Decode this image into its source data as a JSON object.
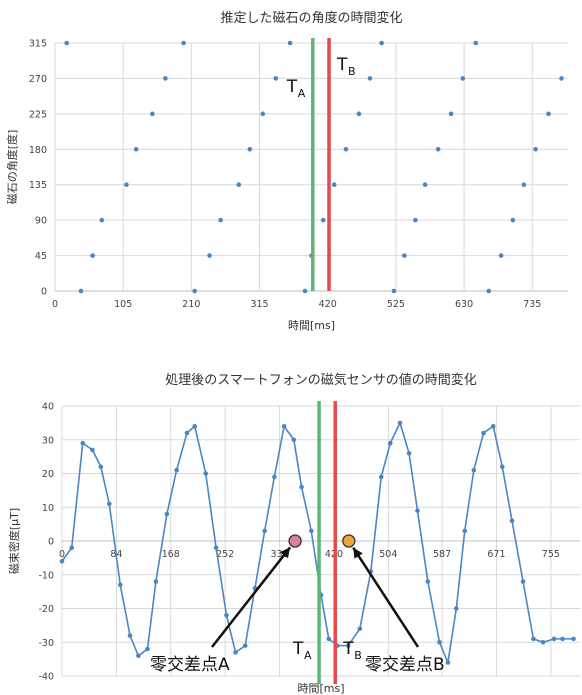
{
  "chart_data": [
    {
      "type": "scatter",
      "title": "推定した磁石の角度の時間変化",
      "xlabel": "時間[ms]",
      "ylabel": "磁石の角度[度]",
      "xlim": [
        0,
        790
      ],
      "ylim": [
        0,
        315
      ],
      "xticks": [
        0,
        105,
        210,
        315,
        420,
        525,
        630,
        735
      ],
      "yticks": [
        0,
        45,
        90,
        135,
        180,
        225,
        270,
        315
      ],
      "grid": true,
      "color": "#4a86c5",
      "series": [
        {
          "x": [
            18,
            40,
            58,
            72,
            110,
            125,
            150,
            170,
            198,
            215,
            238,
            255,
            283,
            300,
            320,
            340,
            362,
            385,
            395,
            413,
            430,
            448,
            468,
            485,
            503,
            522,
            538,
            555,
            570,
            590,
            610,
            628,
            648,
            668,
            687,
            705,
            722,
            740,
            760,
            780
          ],
          "y": [
            315,
            0,
            45,
            90,
            135,
            180,
            225,
            270,
            315,
            0,
            45,
            90,
            135,
            180,
            225,
            270,
            315,
            0,
            45,
            90,
            135,
            180,
            225,
            270,
            315,
            0,
            45,
            90,
            135,
            180,
            225,
            270,
            315,
            0,
            45,
            90,
            135,
            180,
            225,
            270
          ]
        }
      ],
      "markers": [
        {
          "name": "T",
          "sub": "A",
          "x": 397,
          "color": "#5fb575"
        },
        {
          "name": "T",
          "sub": "B",
          "x": 422,
          "color": "#e8484d"
        }
      ]
    },
    {
      "type": "line",
      "title": "処理後のスマートフォンの磁気センサの値の時間変化",
      "xlabel": "時間[ms]",
      "ylabel": "磁束密度[μT]",
      "xlim": [
        0,
        800
      ],
      "ylim": [
        -40,
        40
      ],
      "xticks": [
        0,
        84,
        168,
        252,
        336,
        420,
        504,
        587,
        671,
        755
      ],
      "xtick_labels": [
        "0",
        "84",
        "168",
        "252",
        "336",
        "420",
        "504",
        "587",
        "671",
        "755"
      ],
      "yticks": [
        -40,
        -30,
        -20,
        -10,
        0,
        10,
        20,
        30,
        40
      ],
      "grid": true,
      "color": "#4a86c5",
      "series": [
        {
          "x": [
            0,
            15,
            32,
            47,
            60,
            73,
            90,
            105,
            118,
            132,
            145,
            162,
            177,
            193,
            205,
            222,
            238,
            254,
            268,
            283,
            298,
            313,
            328,
            343,
            358,
            370,
            385,
            400,
            412,
            425,
            442,
            460,
            477,
            493,
            507,
            522,
            536,
            549,
            565,
            583,
            596,
            609,
            622,
            636,
            651,
            666,
            680,
            695,
            712,
            728,
            743,
            760,
            773,
            790
          ],
          "y": [
            -6,
            -2,
            29,
            27,
            22,
            11,
            -13,
            -28,
            -34,
            -32,
            -12,
            8,
            21,
            32,
            34,
            20,
            -2,
            -22,
            -33,
            -31,
            -14,
            3,
            19,
            34,
            30,
            16,
            3,
            -16,
            -29,
            -31,
            -31,
            -26,
            -9,
            19,
            29,
            35,
            26,
            9,
            -12,
            -30,
            -36,
            -20,
            3,
            21,
            32,
            34,
            22,
            6,
            -12,
            -29,
            -30,
            -29,
            -29,
            -29
          ]
        }
      ],
      "markers": [
        {
          "name": "T",
          "sub": "A",
          "x": 397,
          "color": "#5fb575"
        },
        {
          "name": "T",
          "sub": "B",
          "x": 422,
          "color": "#e8484d"
        }
      ],
      "zero_crossings": [
        {
          "label": "零交差点A",
          "x": 360,
          "y": 0,
          "color": "#d9809a"
        },
        {
          "label": "零交差点B",
          "x": 443,
          "y": 0,
          "color": "#f2a33a"
        }
      ]
    }
  ]
}
